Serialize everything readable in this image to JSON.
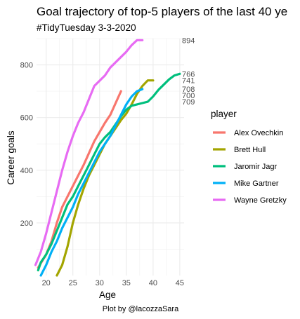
{
  "chart_data": {
    "type": "line",
    "title": "Goal trajectory of top-5 players of the last 40 ye",
    "subtitle": "#TidyTuesday 3-3-2020",
    "xlabel": "Age",
    "ylabel": "Career goals",
    "caption": "Plot by @lacozzaSara",
    "legend_title": "player",
    "legend_placement": "right",
    "grid": true,
    "xlim": [
      18.2,
      45.8
    ],
    "ylim": [
      0,
      900
    ],
    "x_ticks": [
      20,
      25,
      30,
      35,
      40,
      45
    ],
    "y_ticks": [
      200,
      400,
      600,
      800
    ],
    "series": [
      {
        "name": "Alex Ovechkin",
        "color": "#F8766D",
        "end_label": "700",
        "points": [
          [
            18.5,
            30
          ],
          [
            20,
            80
          ],
          [
            21,
            130
          ],
          [
            22,
            200
          ],
          [
            23,
            260
          ],
          [
            24,
            300
          ],
          [
            25,
            340
          ],
          [
            26,
            380
          ],
          [
            27,
            420
          ],
          [
            28,
            465
          ],
          [
            29,
            510
          ],
          [
            30,
            545
          ],
          [
            31,
            580
          ],
          [
            32,
            610
          ],
          [
            33,
            655
          ],
          [
            34,
            700
          ]
        ]
      },
      {
        "name": "Brett Hull",
        "color": "#A3A500",
        "end_label": "741",
        "points": [
          [
            22,
            0
          ],
          [
            23,
            40
          ],
          [
            24,
            110
          ],
          [
            25,
            200
          ],
          [
            26,
            270
          ],
          [
            27,
            330
          ],
          [
            28,
            380
          ],
          [
            29,
            420
          ],
          [
            30,
            460
          ],
          [
            31,
            500
          ],
          [
            32,
            530
          ],
          [
            33,
            560
          ],
          [
            34,
            590
          ],
          [
            35,
            615
          ],
          [
            36,
            650
          ],
          [
            37,
            690
          ],
          [
            38,
            720
          ],
          [
            39,
            741
          ],
          [
            40,
            741
          ]
        ]
      },
      {
        "name": "Jaromir Jagr",
        "color": "#00BF7D",
        "end_label": "766",
        "points": [
          [
            18.5,
            20
          ],
          [
            19,
            50
          ],
          [
            20,
            80
          ],
          [
            21,
            120
          ],
          [
            22,
            170
          ],
          [
            23,
            220
          ],
          [
            24,
            270
          ],
          [
            25,
            300
          ],
          [
            26,
            340
          ],
          [
            27,
            380
          ],
          [
            28,
            420
          ],
          [
            29,
            460
          ],
          [
            30,
            500
          ],
          [
            31,
            525
          ],
          [
            32,
            545
          ],
          [
            33,
            575
          ],
          [
            34,
            605
          ],
          [
            35,
            630
          ],
          [
            36,
            645
          ],
          [
            37,
            650
          ],
          [
            38,
            655
          ],
          [
            39,
            660
          ],
          [
            40,
            680
          ],
          [
            41,
            705
          ],
          [
            42,
            725
          ],
          [
            43,
            745
          ],
          [
            44,
            760
          ],
          [
            45,
            766
          ]
        ]
      },
      {
        "name": "Mike Gartner",
        "color": "#00B0F6",
        "end_label": "708",
        "points": [
          [
            19,
            0
          ],
          [
            20,
            40
          ],
          [
            21,
            90
          ],
          [
            22,
            130
          ],
          [
            23,
            180
          ],
          [
            24,
            220
          ],
          [
            25,
            260
          ],
          [
            26,
            310
          ],
          [
            27,
            350
          ],
          [
            28,
            390
          ],
          [
            29,
            430
          ],
          [
            30,
            470
          ],
          [
            31,
            500
          ],
          [
            32,
            530
          ],
          [
            33,
            570
          ],
          [
            34,
            610
          ],
          [
            35,
            650
          ],
          [
            36,
            680
          ],
          [
            37,
            700
          ],
          [
            38,
            708
          ]
        ]
      },
      {
        "name": "Wayne Gretzky",
        "color": "#E76BF3",
        "end_label": "894",
        "points": [
          [
            18,
            40
          ],
          [
            19,
            90
          ],
          [
            20,
            160
          ],
          [
            21,
            240
          ],
          [
            22,
            320
          ],
          [
            23,
            400
          ],
          [
            24,
            470
          ],
          [
            25,
            530
          ],
          [
            26,
            580
          ],
          [
            27,
            620
          ],
          [
            28,
            670
          ],
          [
            29,
            720
          ],
          [
            30,
            740
          ],
          [
            31,
            760
          ],
          [
            32,
            790
          ],
          [
            33,
            810
          ],
          [
            34,
            830
          ],
          [
            35,
            850
          ],
          [
            36,
            875
          ],
          [
            37,
            894
          ],
          [
            38,
            894
          ]
        ]
      }
    ],
    "extra_end_label": "709"
  }
}
